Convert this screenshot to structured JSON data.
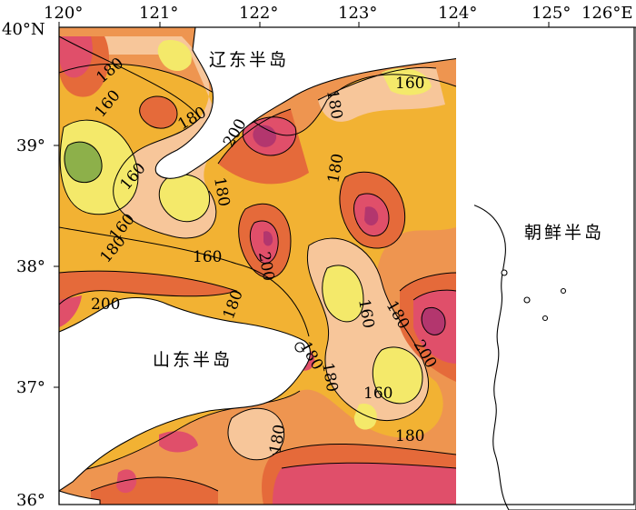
{
  "map": {
    "lon_ticks": [
      "120°",
      "121°",
      "122°",
      "123°",
      "124°",
      "125°",
      "126°E"
    ],
    "lat_ticks": [
      "40°N",
      "39°",
      "38°",
      "37°",
      "36°"
    ],
    "regions": {
      "liaodong": "辽东半岛",
      "shandong": "山东半岛",
      "korea": "朝鲜半岛"
    },
    "contour_labels": [
      "180",
      "160",
      "160",
      "180",
      "160",
      "180",
      "200",
      "200",
      "180",
      "180",
      "160",
      "180",
      "160",
      "200",
      "180",
      "160",
      "180",
      "180",
      "200",
      "180",
      "160",
      "180",
      "180"
    ],
    "colors": {
      "c140": "#8db04a",
      "c150": "#f4e96a",
      "c160": "#f7c69a",
      "c170": "#f2b233",
      "c180": "#ee9550",
      "c190": "#e56a3a",
      "c200": "#e04f6a",
      "c210": "#b3366e",
      "land": "#ffffff"
    }
  }
}
